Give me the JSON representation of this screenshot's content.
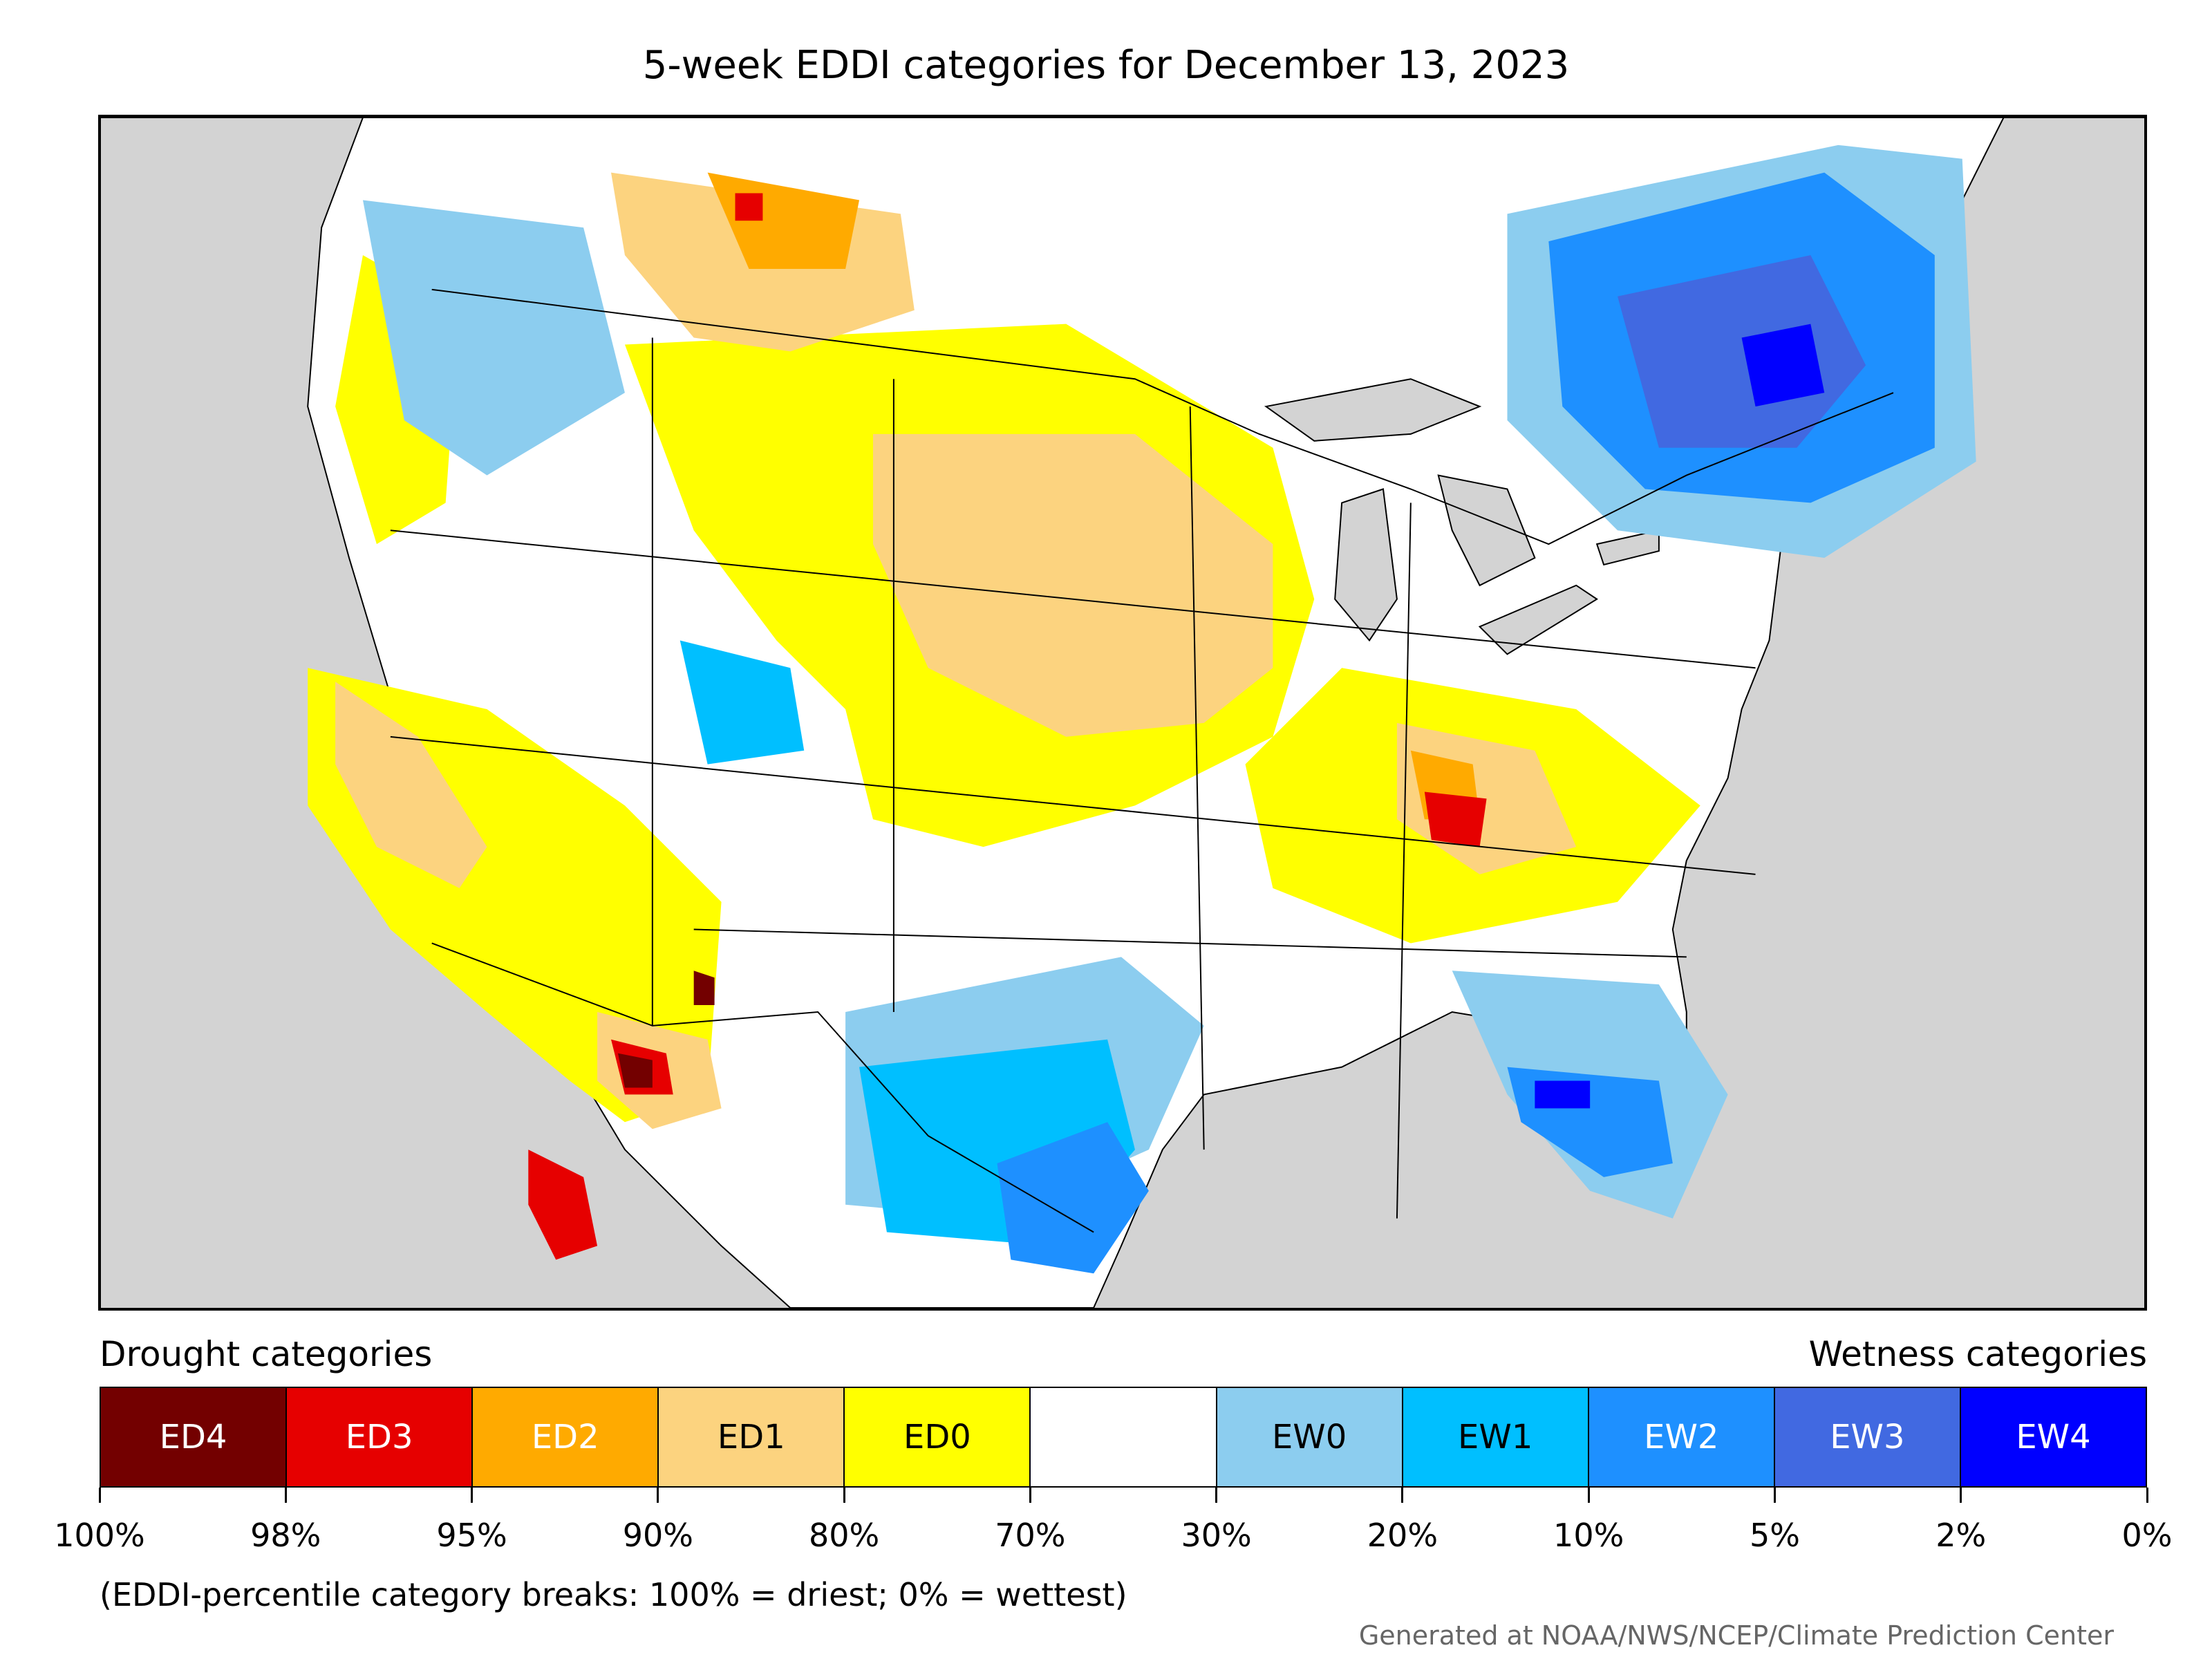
{
  "title": "5-week EDDI categories for December 13, 2023",
  "legend": {
    "drought_title": "Drought categories",
    "wetness_title": "Wetness categories",
    "categories": [
      {
        "label": "ED4",
        "color": "#730000",
        "text_color": "#ffffff"
      },
      {
        "label": "ED3",
        "color": "#e60000",
        "text_color": "#ffffff"
      },
      {
        "label": "ED2",
        "color": "#ffaa00",
        "text_color": "#ffffff"
      },
      {
        "label": "ED1",
        "color": "#fcd37f",
        "text_color": "#000000"
      },
      {
        "label": "ED0",
        "color": "#ffff00",
        "text_color": "#000000"
      },
      {
        "label": "",
        "color": "#ffffff",
        "text_color": "#000000"
      },
      {
        "label": "EW0",
        "color": "#8ccdef",
        "text_color": "#000000"
      },
      {
        "label": "EW1",
        "color": "#00bfff",
        "text_color": "#000000"
      },
      {
        "label": "EW2",
        "color": "#1e90ff",
        "text_color": "#ffffff"
      },
      {
        "label": "EW3",
        "color": "#4169e1",
        "text_color": "#ffffff"
      },
      {
        "label": "EW4",
        "color": "#0000ff",
        "text_color": "#ffffff"
      }
    ],
    "tick_labels": [
      "100%",
      "98%",
      "95%",
      "90%",
      "80%",
      "70%",
      "30%",
      "20%",
      "10%",
      "5%",
      "2%",
      "0%"
    ]
  },
  "note": "(EDDI-percentile category breaks: 100% = driest; 0% = wettest)",
  "credit": "Generated at NOAA/NWS/NCEP/Climate Prediction Center",
  "map_colors": {
    "ocean": "#d3d3d3",
    "land": "#ffffff",
    "boundary": "#000000"
  }
}
